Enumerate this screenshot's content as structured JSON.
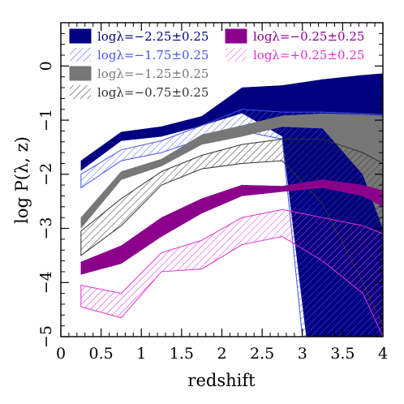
{
  "chart_data": {
    "type": "area",
    "xlabel": "redshift",
    "ylabel": "log P(λ, z)",
    "xlim": [
      0,
      4
    ],
    "ylim": [
      -5,
      0.8
    ],
    "x_ticks": [
      "0",
      "0.5",
      "1",
      "1.5",
      "2",
      "2.5",
      "3",
      "3.5",
      "4"
    ],
    "x_tick_values": [
      0,
      0.5,
      1,
      1.5,
      2,
      2.5,
      3,
      3.5,
      4
    ],
    "y_ticks": [
      "0",
      "−1",
      "−2",
      "−3",
      "−4",
      "−5"
    ],
    "y_tick_values": [
      0,
      -1,
      -2,
      -3,
      -4,
      -5
    ],
    "legend_placement": "top-left",
    "series": [
      {
        "name": "logλ=−2.25±0.25",
        "color": "#000080",
        "style": "solid",
        "x": [
          0.25,
          0.75,
          1.25,
          1.75,
          2.25,
          2.75,
          3.25,
          3.75,
          4.0
        ],
        "upper": [
          -1.75,
          -1.22,
          -1.12,
          -0.93,
          -0.4,
          -0.36,
          -0.25,
          -0.17,
          -0.14
        ],
        "lower": [
          -1.93,
          -1.38,
          -1.3,
          -1.1,
          -0.87,
          -0.95,
          -0.88,
          -1.0,
          -1.05
        ],
        "lower_right": {
          "x": [
            2.75,
            3.05,
            3.4,
            3.7,
            4.0
          ],
          "lower": [
            -1.3,
            -5.0,
            -5.0,
            -5.0,
            -5.0
          ]
        }
      },
      {
        "name": "logλ=−1.75±0.25",
        "color": "#4455ee",
        "style": "hatched",
        "x": [
          0.25,
          0.75,
          1.25,
          1.75,
          2.25,
          2.75,
          3.25,
          3.75,
          4.0
        ],
        "upper": [
          -2.0,
          -1.55,
          -1.38,
          -1.1,
          -0.8,
          -0.85,
          -0.85,
          -0.88,
          -0.9
        ],
        "lower": [
          -2.25,
          -1.75,
          -1.6,
          -1.35,
          -1.2,
          -1.3,
          -2.8,
          -3.5,
          -4.1
        ],
        "lower_right": {
          "x": [
            2.75,
            3.0,
            3.5,
            3.8,
            4.0
          ],
          "lower": [
            -1.35,
            -5.0,
            -5.0,
            -5.0,
            -5.0
          ]
        }
      },
      {
        "name": "logλ=−1.25±0.25",
        "color": "#777777",
        "style": "solid",
        "x": [
          0.25,
          0.75,
          1.25,
          1.75,
          2.25,
          2.75,
          3.25,
          3.75,
          4.0
        ],
        "upper": [
          -2.8,
          -1.95,
          -1.72,
          -1.27,
          -1.1,
          -0.92,
          -0.88,
          -0.9,
          -0.92
        ],
        "lower": [
          -3.0,
          -2.1,
          -1.85,
          -1.45,
          -1.3,
          -1.12,
          -1.15,
          -2.0,
          -3.0
        ]
      },
      {
        "name": "logλ=−0.75±0.25",
        "color": "#333333",
        "style": "hatched",
        "x": [
          0.25,
          0.75,
          1.25,
          1.75,
          2.25,
          2.75,
          3.25,
          3.75,
          4.0
        ],
        "upper": [
          -3.05,
          -2.45,
          -1.95,
          -1.65,
          -1.45,
          -1.35,
          -1.35,
          -1.6,
          -1.8
        ],
        "lower": [
          -3.5,
          -2.95,
          -2.2,
          -1.9,
          -1.8,
          -1.75,
          -2.55,
          -4.0,
          -4.8
        ]
      },
      {
        "name": "logλ=−0.25±0.25",
        "color": "#8b008b",
        "style": "solid",
        "x": [
          0.25,
          0.75,
          1.25,
          1.75,
          2.25,
          2.75,
          3.25,
          3.75,
          4.0
        ],
        "upper": [
          -3.62,
          -3.32,
          -2.8,
          -2.45,
          -2.2,
          -2.22,
          -2.1,
          -2.2,
          -2.3
        ],
        "lower": [
          -3.85,
          -3.65,
          -3.15,
          -2.72,
          -2.4,
          -2.32,
          -2.25,
          -2.4,
          -2.6
        ]
      },
      {
        "name": "logλ=+0.25±0.25",
        "color": "#e030d0",
        "style": "hatched",
        "x": [
          0.25,
          0.75,
          1.25,
          1.75,
          2.25,
          2.75,
          3.25,
          3.75,
          4.0
        ],
        "upper": [
          -4.05,
          -4.2,
          -3.45,
          -3.22,
          -2.8,
          -2.65,
          -2.8,
          -2.95,
          -3.1
        ],
        "lower": [
          -4.45,
          -4.65,
          -3.8,
          -3.75,
          -3.3,
          -3.15,
          -3.6,
          -4.2,
          -5.0
        ]
      }
    ]
  }
}
